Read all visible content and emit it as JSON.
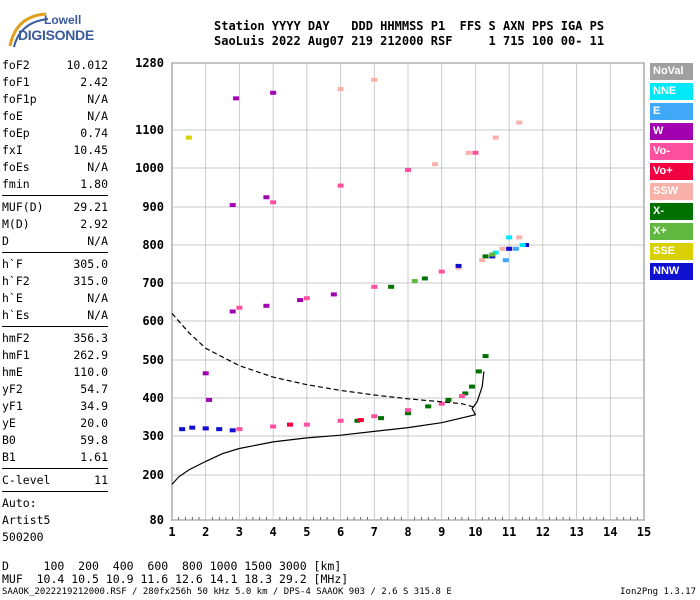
{
  "logo": {
    "line1": "Lowell",
    "line2": "DIGISONDE"
  },
  "header": {
    "line1": "Station YYYY DAY   DDD HHMMSS P1  FFS S AXN PPS IGA PS",
    "line2": "SaoLuis 2022 Aug07 219 212000 RSF     1 715 100 00- 11"
  },
  "params": {
    "group1": [
      {
        "k": "foF2",
        "v": "10.012"
      },
      {
        "k": "foF1",
        "v": "2.42"
      },
      {
        "k": "foF1p",
        "v": "N/A"
      },
      {
        "k": "foE",
        "v": "N/A"
      },
      {
        "k": "foEp",
        "v": "0.74"
      },
      {
        "k": "fxI",
        "v": "10.45"
      },
      {
        "k": "foEs",
        "v": "N/A"
      },
      {
        "k": "fmin",
        "v": "1.80"
      }
    ],
    "group2": [
      {
        "k": "MUF(D)",
        "v": "29.21"
      },
      {
        "k": "M(D)",
        "v": "2.92"
      },
      {
        "k": "D",
        "v": "N/A"
      }
    ],
    "group3": [
      {
        "k": "h`F",
        "v": "305.0"
      },
      {
        "k": "h`F2",
        "v": "315.0"
      },
      {
        "k": "h`E",
        "v": "N/A"
      },
      {
        "k": "h`Es",
        "v": "N/A"
      }
    ],
    "group4": [
      {
        "k": "hmF2",
        "v": "356.3"
      },
      {
        "k": "hmF1",
        "v": "262.9"
      },
      {
        "k": "hmE",
        "v": "110.0"
      },
      {
        "k": "yF2",
        "v": "54.7"
      },
      {
        "k": "yF1",
        "v": "34.9"
      },
      {
        "k": "yE",
        "v": "20.0"
      },
      {
        "k": "B0",
        "v": "59.8"
      },
      {
        "k": "B1",
        "v": "1.61"
      }
    ],
    "clevel": {
      "k": "C-level",
      "v": "11"
    },
    "auto": [
      "Auto:",
      "Artist5",
      "500200"
    ]
  },
  "legend": [
    {
      "label": "NoVal",
      "color": "#a0a0a0"
    },
    {
      "label": "NNE",
      "color": "#00e8f8"
    },
    {
      "label": "E",
      "color": "#40a8f8"
    },
    {
      "label": "W",
      "color": "#a000b0"
    },
    {
      "label": "Vo-",
      "color": "#ff50a0"
    },
    {
      "label": "Vo+",
      "color": "#f00040"
    },
    {
      "label": "SSW",
      "color": "#f8b0a8"
    },
    {
      "label": "X-",
      "color": "#007000"
    },
    {
      "label": "X+",
      "color": "#60b840"
    },
    {
      "label": "SSE",
      "color": "#d8d000"
    },
    {
      "label": "NNW",
      "color": "#1010d0"
    }
  ],
  "bottom": {
    "d_row": "D     100  200  400  600  800 1000 1500 3000 [km]",
    "muf_row": "MUF  10.4 10.5 10.9 11.6 12.6 14.1 18.3 29.2 [MHz]"
  },
  "footer": {
    "text": "SAAOK_2022219212000.RSF / 280fx256h 50 kHz 5.0 km / DPS-4 SAAOK 903 / 2.6 S 315.8 E",
    "version": "Ion2Png 1.3.17"
  },
  "chart_data": {
    "type": "scatter",
    "title": "",
    "xlabel": "",
    "ylabel": "",
    "xlim": [
      1,
      15
    ],
    "ylim": [
      80,
      1280
    ],
    "x_ticks": [
      1,
      2,
      3,
      4,
      5,
      6,
      7,
      8,
      9,
      10,
      11,
      12,
      13,
      14,
      15
    ],
    "y_ticks": [
      80,
      200,
      300,
      400,
      500,
      600,
      700,
      800,
      900,
      1000,
      1100,
      1280
    ],
    "grid": true,
    "series": [
      {
        "name": "X-",
        "color": "#007000",
        "points": [
          [
            6.5,
            340
          ],
          [
            7.2,
            347
          ],
          [
            8,
            360
          ],
          [
            8.6,
            378
          ],
          [
            9.2,
            395
          ],
          [
            9.7,
            412
          ],
          [
            9.9,
            430
          ],
          [
            10.1,
            470
          ],
          [
            10.3,
            510
          ],
          [
            7.5,
            690
          ],
          [
            8.5,
            712
          ],
          [
            10.3,
            770
          ]
        ]
      },
      {
        "name": "Vo-",
        "color": "#ff50a0",
        "points": [
          [
            2,
            320
          ],
          [
            3,
            318
          ],
          [
            4,
            325
          ],
          [
            5,
            330
          ],
          [
            6,
            340
          ],
          [
            7,
            352
          ],
          [
            8,
            368
          ],
          [
            9,
            385
          ],
          [
            9.6,
            405
          ],
          [
            3,
            635
          ],
          [
            5,
            660
          ],
          [
            7,
            690
          ],
          [
            9,
            730
          ],
          [
            11,
            790
          ],
          [
            4,
            912
          ],
          [
            6,
            955
          ],
          [
            8,
            995
          ],
          [
            10,
            1040
          ]
        ]
      },
      {
        "name": "SSW",
        "color": "#f8b0a8",
        "points": [
          [
            9.5,
            740
          ],
          [
            10.2,
            760
          ],
          [
            10.8,
            790
          ],
          [
            11.3,
            820
          ],
          [
            8.8,
            1010
          ],
          [
            9.8,
            1040
          ],
          [
            10.6,
            1080
          ],
          [
            11.3,
            1120
          ],
          [
            6,
            1210
          ],
          [
            7,
            1235
          ]
        ]
      },
      {
        "name": "W",
        "color": "#a000b0",
        "points": [
          [
            2.8,
            625
          ],
          [
            3.8,
            640
          ],
          [
            4.8,
            655
          ],
          [
            5.8,
            670
          ],
          [
            2.8,
            905
          ],
          [
            3.8,
            925
          ],
          [
            2.9,
            1185
          ],
          [
            4,
            1200
          ],
          [
            2,
            465
          ],
          [
            2.1,
            395
          ]
        ]
      },
      {
        "name": "NNW",
        "color": "#1010d0",
        "points": [
          [
            1.3,
            318
          ],
          [
            1.6,
            322
          ],
          [
            2,
            320
          ],
          [
            2.4,
            318
          ],
          [
            2.8,
            315
          ],
          [
            9.5,
            745
          ],
          [
            10.5,
            770
          ],
          [
            11,
            790
          ],
          [
            11.5,
            800
          ]
        ]
      },
      {
        "name": "NNE",
        "color": "#00e8f8",
        "points": [
          [
            11,
            820
          ],
          [
            11.4,
            800
          ],
          [
            10.6,
            780
          ]
        ]
      },
      {
        "name": "E",
        "color": "#40a8f8",
        "points": [
          [
            10.9,
            760
          ],
          [
            11.2,
            790
          ]
        ]
      },
      {
        "name": "Vo+",
        "color": "#f00040",
        "points": [
          [
            4.5,
            330
          ],
          [
            6.6,
            342
          ]
        ]
      },
      {
        "name": "X+",
        "color": "#60b840",
        "points": [
          [
            8.2,
            705
          ],
          [
            10.5,
            775
          ]
        ]
      },
      {
        "name": "SSE",
        "color": "#d8d000",
        "points": [
          [
            1.5,
            1080
          ]
        ]
      }
    ],
    "curves": [
      {
        "name": "profile",
        "style": "solid",
        "points": [
          [
            1,
            175
          ],
          [
            1.2,
            195
          ],
          [
            1.5,
            213
          ],
          [
            2,
            235
          ],
          [
            2.5,
            255
          ],
          [
            3,
            268
          ],
          [
            4,
            285
          ],
          [
            5,
            295
          ],
          [
            6,
            302
          ],
          [
            7,
            312
          ],
          [
            8,
            322
          ],
          [
            9,
            335
          ],
          [
            10,
            356
          ],
          [
            9.9,
            372
          ],
          [
            10.05,
            390
          ],
          [
            10.2,
            430
          ],
          [
            10.25,
            470
          ]
        ]
      },
      {
        "name": "extrapolated",
        "style": "dashed",
        "points": [
          [
            1,
            620
          ],
          [
            1.5,
            570
          ],
          [
            2,
            530
          ],
          [
            3,
            485
          ],
          [
            4,
            455
          ],
          [
            5,
            435
          ],
          [
            6,
            420
          ],
          [
            7,
            408
          ],
          [
            8,
            398
          ],
          [
            9,
            390
          ],
          [
            9.6,
            385
          ],
          [
            10,
            375
          ]
        ]
      }
    ]
  }
}
